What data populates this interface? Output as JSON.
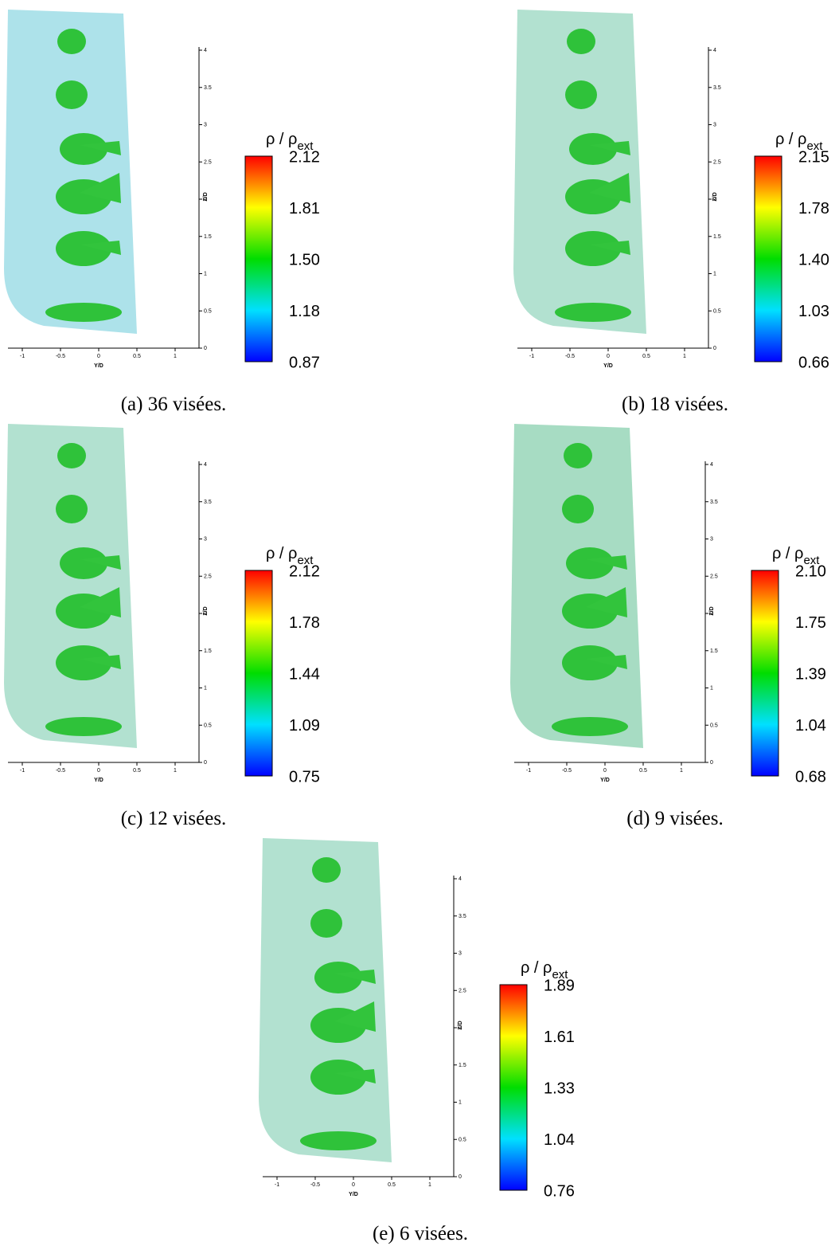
{
  "panels": [
    {
      "caption": "(a) 36 visées.",
      "colorbar_title": "ρ / ρ",
      "colorbar_title_sub": "ext",
      "colorbar_ticks": [
        "2.12",
        "1.81",
        "1.50",
        "1.18",
        "0.87"
      ]
    },
    {
      "caption": "(b) 18 visées.",
      "colorbar_title": "ρ / ρ",
      "colorbar_title_sub": "ext",
      "colorbar_ticks": [
        "2.15",
        "1.78",
        "1.40",
        "1.03",
        "0.66"
      ]
    },
    {
      "caption": "(c) 12 visées.",
      "colorbar_title": "ρ / ρ",
      "colorbar_title_sub": "ext",
      "colorbar_ticks": [
        "2.12",
        "1.78",
        "1.44",
        "1.09",
        "0.75"
      ]
    },
    {
      "caption": "(d) 9 visées.",
      "colorbar_title": "ρ / ρ",
      "colorbar_title_sub": "ext",
      "colorbar_ticks": [
        "2.10",
        "1.75",
        "1.39",
        "1.04",
        "0.68"
      ]
    },
    {
      "caption": "(e) 6 visées.",
      "colorbar_title": "ρ / ρ",
      "colorbar_title_sub": "ext",
      "colorbar_ticks": [
        "1.89",
        "1.61",
        "1.33",
        "1.04",
        "0.76"
      ]
    }
  ],
  "axes": {
    "x_label": "Y/D",
    "x_ticks": [
      "-1",
      "-0.5",
      "0",
      "0.5",
      "1"
    ],
    "y_label": "Z/D",
    "y_ticks": [
      "0",
      "0.5",
      "1",
      "1.5",
      "2",
      "2.5",
      "3",
      "3.5",
      "4"
    ]
  }
}
